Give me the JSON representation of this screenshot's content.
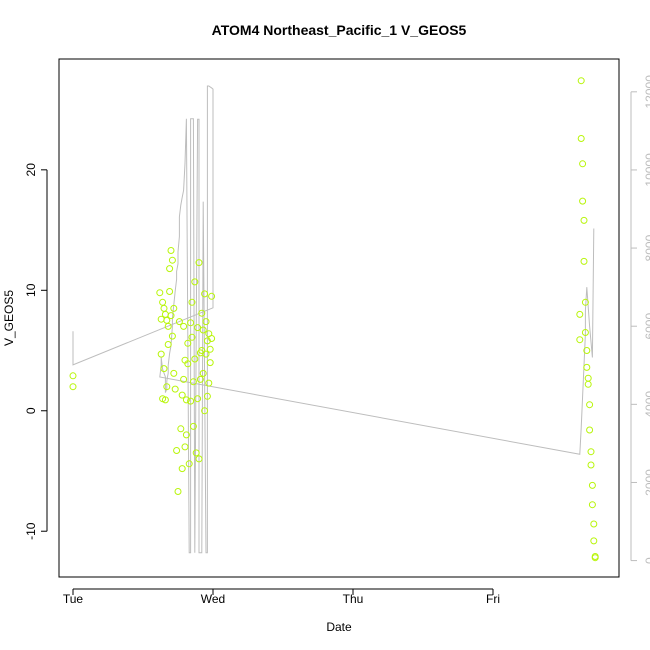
{
  "chart_data": {
    "type": "scatter",
    "title": "ATOM4 Northeast_Pacific_1 V_GEOS5",
    "xlabel": "Date",
    "ylabel": "V_GEOS5",
    "x_ticks": [
      "Tue",
      "Wed",
      "Thu",
      "Fri"
    ],
    "x_range_days": [
      -0.1,
      3.9
    ],
    "ylim": [
      -13.8,
      29.2
    ],
    "y_ticks": [
      -10,
      0,
      10,
      20
    ],
    "y2_ticks": [
      0,
      2000,
      4000,
      6000,
      8000,
      10000,
      12000
    ],
    "y2lim": [
      -420,
      12840
    ],
    "colors": {
      "points": "#b8f50a",
      "line": "#bdbdbd",
      "axis": "#000000",
      "axis2": "#bdbdbd"
    },
    "series": [
      {
        "type": "scatter",
        "axis": "left",
        "x": [
          0.0,
          0.0,
          0.62,
          0.63,
          0.63,
          0.64,
          0.64,
          0.65,
          0.65,
          0.66,
          0.66,
          0.67,
          0.67,
          0.68,
          0.68,
          0.69,
          0.69,
          0.7,
          0.7,
          0.71,
          0.71,
          0.72,
          0.72,
          0.73,
          0.74,
          0.75,
          0.76,
          0.77,
          0.78,
          0.78,
          0.79,
          0.79,
          0.8,
          0.8,
          0.81,
          0.81,
          0.82,
          0.82,
          0.83,
          0.84,
          0.84,
          0.85,
          0.85,
          0.86,
          0.86,
          0.87,
          0.87,
          0.88,
          0.89,
          0.89,
          0.9,
          0.9,
          0.91,
          0.91,
          0.92,
          0.92,
          0.93,
          0.93,
          0.94,
          0.94,
          0.95,
          0.95,
          0.96,
          0.96,
          0.97,
          0.97,
          0.98,
          0.98,
          0.99,
          0.99,
          3.62,
          3.62,
          3.63,
          3.63,
          3.64,
          3.64,
          3.65,
          3.65,
          3.66,
          3.66,
          3.67,
          3.67,
          3.68,
          3.68,
          3.69,
          3.69,
          3.7,
          3.7,
          3.71,
          3.71,
          3.72,
          3.72,
          3.73,
          3.73
        ],
        "y": [
          2.9,
          2.0,
          9.8,
          7.6,
          4.7,
          9.0,
          1.0,
          8.5,
          3.5,
          8.0,
          0.9,
          7.5,
          2.0,
          7.0,
          5.5,
          11.8,
          9.9,
          13.3,
          7.9,
          12.5,
          6.2,
          8.5,
          3.1,
          1.8,
          -3.3,
          -6.7,
          7.4,
          -1.5,
          1.3,
          -4.8,
          2.6,
          7.0,
          -3.0,
          4.2,
          0.9,
          -2.0,
          5.6,
          3.9,
          -4.4,
          7.3,
          0.8,
          6.1,
          9.0,
          2.4,
          -1.3,
          10.7,
          4.3,
          -3.5,
          1.0,
          6.9,
          -4.0,
          12.3,
          4.8,
          2.6,
          8.1,
          5.0,
          6.7,
          3.1,
          0.0,
          9.7,
          4.7,
          7.4,
          5.8,
          1.2,
          6.4,
          2.3,
          5.1,
          4.0,
          9.5,
          6.0,
          8.0,
          5.9,
          27.4,
          22.6,
          20.5,
          17.4,
          15.8,
          12.4,
          9.0,
          6.5,
          5.0,
          3.6,
          2.7,
          2.2,
          0.5,
          -1.6,
          -3.4,
          -4.5,
          -6.2,
          -7.8,
          -9.4,
          -10.8,
          -12.1,
          -12.2
        ]
      },
      {
        "type": "line",
        "axis": "right",
        "x": [
          0.0,
          0.0,
          1.0,
          1.0,
          0.99,
          0.97,
          0.96,
          0.96,
          0.95,
          0.93,
          0.93,
          0.92,
          0.9,
          0.9,
          0.89,
          0.87,
          0.87,
          0.86,
          0.84,
          0.84,
          0.83,
          0.81,
          0.81,
          0.8,
          0.79,
          0.78,
          0.77,
          0.76,
          0.76,
          0.75,
          0.75,
          0.74,
          0.74,
          0.73,
          0.71,
          0.71,
          0.7,
          0.69,
          0.68,
          0.68,
          0.67,
          0.67,
          0.66,
          0.66,
          0.64,
          0.63,
          0.63,
          0.62,
          3.62,
          3.63,
          3.64,
          3.65,
          3.66,
          3.66,
          3.67,
          3.68,
          3.69,
          3.7,
          3.71,
          3.72
        ],
        "y": [
          5870,
          5010,
          6470,
          12070,
          12100,
          12150,
          12150,
          200,
          200,
          9180,
          9190,
          200,
          200,
          11300,
          11300,
          200,
          200,
          11310,
          11310,
          200,
          200,
          11310,
          11310,
          10170,
          9480,
          9300,
          9100,
          8800,
          8300,
          7900,
          7600,
          7400,
          7200,
          6900,
          6200,
          6000,
          5500,
          5300,
          5000,
          4800,
          4600,
          4400,
          4300,
          4700,
          4900,
          5200,
          5000,
          4700,
          2720,
          3400,
          4200,
          5000,
          5800,
          6400,
          7000,
          6500,
          6000,
          5600,
          5200,
          8500
        ]
      }
    ]
  }
}
